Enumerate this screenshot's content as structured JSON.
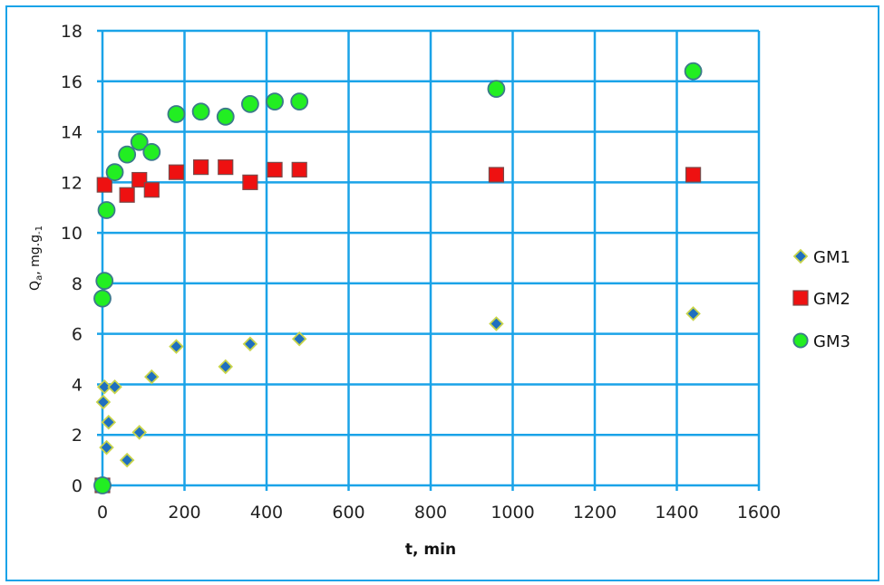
{
  "chart_data": {
    "type": "scatter",
    "title": "",
    "xlabel": "t, min",
    "ylabel": "Qa, mg.g-1",
    "xlim": [
      0,
      1600
    ],
    "ylim": [
      0,
      18
    ],
    "xticks": [
      0,
      200,
      400,
      600,
      800,
      1000,
      1200,
      1400,
      1600
    ],
    "yticks": [
      0,
      2,
      4,
      6,
      8,
      10,
      12,
      14,
      16,
      18
    ],
    "grid": true,
    "legend_position": "right",
    "series": [
      {
        "name": "GM1",
        "marker": "diamond",
        "color": "#1f6fbf",
        "edge_color": "#c8d44a",
        "points": [
          [
            0,
            0
          ],
          [
            2,
            3.3
          ],
          [
            5,
            3.9
          ],
          [
            10,
            1.5
          ],
          [
            15,
            2.5
          ],
          [
            30,
            3.9
          ],
          [
            60,
            1.0
          ],
          [
            90,
            2.1
          ],
          [
            120,
            4.3
          ],
          [
            180,
            5.5
          ],
          [
            300,
            4.7
          ],
          [
            360,
            5.6
          ],
          [
            480,
            5.8
          ],
          [
            960,
            6.4
          ],
          [
            1440,
            6.8
          ]
        ]
      },
      {
        "name": "GM2",
        "marker": "square",
        "color": "#ee1111",
        "edge_color": "#7a4a4a",
        "points": [
          [
            0,
            0
          ],
          [
            5,
            11.9
          ],
          [
            60,
            11.5
          ],
          [
            90,
            12.1
          ],
          [
            120,
            11.7
          ],
          [
            180,
            12.4
          ],
          [
            240,
            12.6
          ],
          [
            300,
            12.6
          ],
          [
            360,
            12.0
          ],
          [
            420,
            12.5
          ],
          [
            480,
            12.5
          ],
          [
            960,
            12.3
          ],
          [
            1440,
            12.3
          ]
        ]
      },
      {
        "name": "GM3",
        "marker": "circle",
        "color": "#22ee22",
        "edge_color": "#3b7a8a",
        "points": [
          [
            0,
            0
          ],
          [
            0,
            7.4
          ],
          [
            5,
            8.1
          ],
          [
            10,
            10.9
          ],
          [
            30,
            12.4
          ],
          [
            60,
            13.1
          ],
          [
            90,
            13.6
          ],
          [
            120,
            13.2
          ],
          [
            180,
            14.7
          ],
          [
            240,
            14.8
          ],
          [
            300,
            14.6
          ],
          [
            360,
            15.1
          ],
          [
            420,
            15.2
          ],
          [
            480,
            15.2
          ],
          [
            960,
            15.7
          ],
          [
            1440,
            16.4
          ]
        ]
      }
    ]
  },
  "axis": {
    "xlabel": "t, min",
    "ylabel_main": "Q",
    "ylabel_sub": "a",
    "ylabel_rest": ", mg.g",
    "ylabel_sup": "-1"
  },
  "colors": {
    "frame": "#1aa3e8",
    "grid": "#1aa3e8"
  }
}
